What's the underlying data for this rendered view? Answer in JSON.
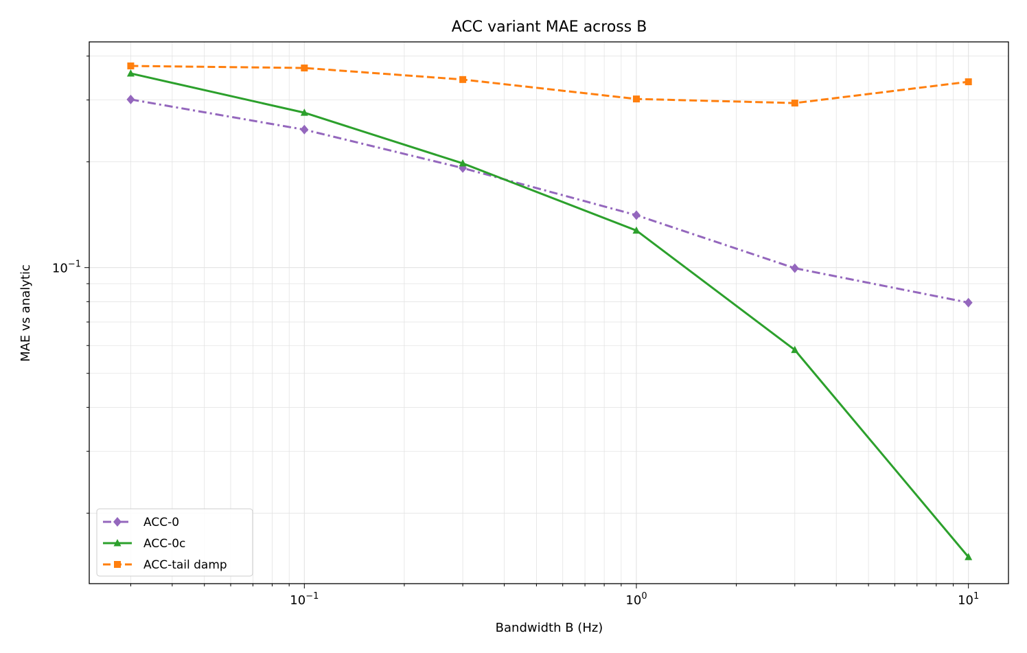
{
  "chart_data": {
    "type": "line",
    "title": "ACC variant MAE across B",
    "xlabel": "Bandwidth B (Hz)",
    "ylabel": "MAE vs analytic",
    "xscale": "log",
    "yscale": "log",
    "xlim": [
      0.0225,
      13.2
    ],
    "ylim": [
      0.0126,
      0.439
    ],
    "x_ticks": [
      {
        "value": 0.1,
        "base": "10",
        "exp": "−1"
      },
      {
        "value": 1,
        "base": "10",
        "exp": "0"
      },
      {
        "value": 10,
        "base": "10",
        "exp": "1"
      }
    ],
    "y_ticks": [
      {
        "value": 0.1,
        "base": "10",
        "exp": "−1"
      }
    ],
    "grid": true,
    "legend_position": "lower-left",
    "x": [
      0.03,
      0.1,
      0.3,
      1,
      3,
      10
    ],
    "series": [
      {
        "name": "ACC-0",
        "color": "#9467bd",
        "marker": "diamond",
        "linestyle": "dashdot",
        "values": [
          0.301,
          0.247,
          0.192,
          0.141,
          0.0996,
          0.0795
        ]
      },
      {
        "name": "ACC-0c",
        "color": "#2ca02c",
        "marker": "triangle",
        "linestyle": "solid",
        "values": [
          0.357,
          0.276,
          0.198,
          0.1275,
          0.0583,
          0.015
        ]
      },
      {
        "name": "ACC-tail damp",
        "color": "#ff7f0e",
        "marker": "square",
        "linestyle": "dashed",
        "values": [
          0.375,
          0.37,
          0.343,
          0.302,
          0.294,
          0.338
        ]
      }
    ]
  }
}
